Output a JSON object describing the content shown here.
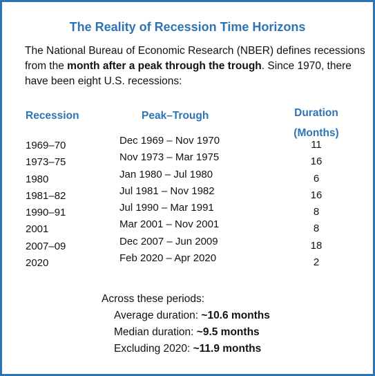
{
  "title": "The Reality of Recession Time Horizons",
  "intro": {
    "part1": "The National Bureau of Economic Research (NBER) defines recessions from  the ",
    "bold": "month after a peak through the trough",
    "part2": ". Since 1970, there have been eight U.S. recessions:"
  },
  "table": {
    "headers": {
      "recession": "Recession",
      "peak_trough": "Peak–Trough",
      "duration_line1": "Duration",
      "duration_line2": "(Months)"
    },
    "rows": [
      {
        "recession": "1969–70",
        "peak_trough": "Dec 1969 – Nov 1970",
        "duration": "11"
      },
      {
        "recession": "1973–75",
        "peak_trough": "Nov 1973 – Mar 1975",
        "duration": "16"
      },
      {
        "recession": "1980",
        "peak_trough": "Jan 1980 – Jul 1980",
        "duration": "6"
      },
      {
        "recession": "1981–82",
        "peak_trough": "Jul 1981 – Nov 1982",
        "duration": "16"
      },
      {
        "recession": "1990–91",
        "peak_trough": "Jul 1990 – Mar 1991",
        "duration": "8"
      },
      {
        "recession": "2001",
        "peak_trough": "Mar 2001 – Nov 2001",
        "duration": "8"
      },
      {
        "recession": "2007–09",
        "peak_trough": "Dec 2007 – Jun 2009",
        "duration": "18"
      },
      {
        "recession": "2020",
        "peak_trough": "Feb 2020 – Apr 2020",
        "duration": "2"
      }
    ]
  },
  "summary": {
    "lead": "Across these periods:",
    "items": [
      {
        "label": "Average duration: ",
        "value": "~10.6 months"
      },
      {
        "label": "Median duration: ",
        "value": "~9.5 months"
      },
      {
        "label": "Excluding 2020: ",
        "value": "~11.9 months"
      }
    ]
  },
  "colors": {
    "accent": "#2e74b5",
    "text": "#111111"
  }
}
